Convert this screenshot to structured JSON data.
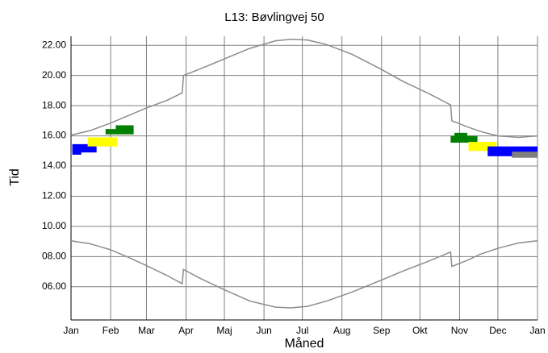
{
  "chart_data": {
    "type": "line",
    "title": "L13: Bøvlingvej 50",
    "xlabel": "Måned",
    "ylabel": "Tid",
    "xlim": [
      0,
      365
    ],
    "ylim": [
      3.8,
      22.6
    ],
    "xticks": [
      {
        "value": 0,
        "label": "Jan"
      },
      {
        "value": 31,
        "label": "Feb"
      },
      {
        "value": 59,
        "label": "Mar"
      },
      {
        "value": 90,
        "label": "Apr"
      },
      {
        "value": 120,
        "label": "Maj"
      },
      {
        "value": 151,
        "label": "Jun"
      },
      {
        "value": 181,
        "label": "Jul"
      },
      {
        "value": 212,
        "label": "Aug"
      },
      {
        "value": 243,
        "label": "Sep"
      },
      {
        "value": 273,
        "label": "Okt"
      },
      {
        "value": 304,
        "label": "Nov"
      },
      {
        "value": 334,
        "label": "Dec"
      },
      {
        "value": 365,
        "label": "Jan"
      }
    ],
    "yticks": [
      {
        "value": 6,
        "label": "06.00"
      },
      {
        "value": 8,
        "label": "08.00"
      },
      {
        "value": 10,
        "label": "10.00"
      },
      {
        "value": 12,
        "label": "12.00"
      },
      {
        "value": 14,
        "label": "14.00"
      },
      {
        "value": 16,
        "label": "16.00"
      },
      {
        "value": 18,
        "label": "18.00"
      },
      {
        "value": 20,
        "label": "20.00"
      },
      {
        "value": 22,
        "label": "22.00"
      }
    ],
    "grid": true,
    "grid_color": "#808080",
    "series": [
      {
        "color": "#8c8c8c",
        "x": [
          0,
          15,
          31,
          45,
          59,
          75,
          87,
          88,
          100,
          120,
          140,
          160,
          172,
          185,
          200,
          220,
          243,
          260,
          280,
          297,
          298,
          310,
          320,
          334,
          350,
          365
        ],
        "values": [
          16.05,
          16.35,
          16.85,
          17.35,
          17.85,
          18.35,
          18.85,
          20.0,
          20.4,
          21.1,
          21.8,
          22.3,
          22.4,
          22.35,
          22.05,
          21.4,
          20.4,
          19.6,
          18.8,
          18.05,
          17.0,
          16.6,
          16.3,
          16.0,
          15.9,
          16.0
        ]
      },
      {
        "color": "#8c8c8c",
        "x": [
          0,
          15,
          31,
          45,
          59,
          75,
          87,
          88,
          100,
          120,
          140,
          160,
          172,
          185,
          200,
          220,
          243,
          260,
          280,
          297,
          298,
          310,
          320,
          334,
          350,
          365
        ],
        "values": [
          9.05,
          8.85,
          8.45,
          7.95,
          7.4,
          6.75,
          6.2,
          7.15,
          6.6,
          5.8,
          5.05,
          4.65,
          4.6,
          4.7,
          5.05,
          5.65,
          6.45,
          7.05,
          7.7,
          8.3,
          7.35,
          7.75,
          8.15,
          8.55,
          8.9,
          9.05
        ]
      }
    ],
    "regions": [
      {
        "color": "#0000ff",
        "x": [
          1,
          20
        ],
        "y": [
          14.9,
          15.45
        ]
      },
      {
        "color": "#0000ff",
        "x": [
          1,
          8
        ],
        "y": [
          14.75,
          15.1
        ]
      },
      {
        "color": "#ffff00",
        "x": [
          13,
          36
        ],
        "y": [
          15.3,
          15.9
        ]
      },
      {
        "color": "#008000",
        "x": [
          27,
          49
        ],
        "y": [
          16.1,
          16.45
        ]
      },
      {
        "color": "#008000",
        "x": [
          35,
          49
        ],
        "y": [
          16.3,
          16.7
        ]
      },
      {
        "color": "#008000",
        "x": [
          297,
          318
        ],
        "y": [
          15.55,
          16.0
        ]
      },
      {
        "color": "#008000",
        "x": [
          300,
          310
        ],
        "y": [
          15.9,
          16.2
        ]
      },
      {
        "color": "#ffff00",
        "x": [
          311,
          333
        ],
        "y": [
          15.0,
          15.6
        ]
      },
      {
        "color": "#0000ff",
        "x": [
          326,
          365
        ],
        "y": [
          14.65,
          15.3
        ]
      },
      {
        "color": "#808080",
        "x": [
          345,
          365
        ],
        "y": [
          14.55,
          14.95
        ]
      }
    ]
  }
}
